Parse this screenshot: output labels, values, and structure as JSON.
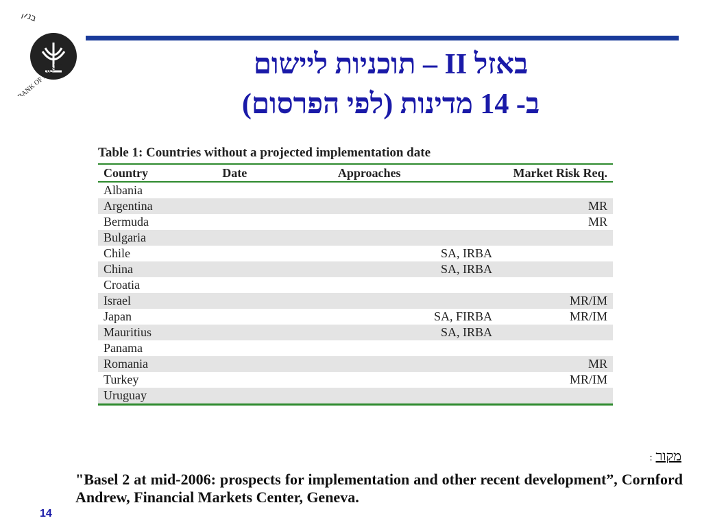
{
  "logo": {
    "hebrew": "בנק ישראל",
    "english": "BANK OF ISRAEL"
  },
  "header": {
    "title_line1": "באזל II – תוכניות ליישום",
    "title_line2": "ב- 14 מדינות (לפי הפרסום)"
  },
  "table": {
    "caption": "Table 1: Countries without a projected implementation date",
    "columns": [
      "Country",
      "Date",
      "Approaches",
      "Market Risk Req."
    ],
    "rows": [
      [
        "Albania",
        null,
        null,
        null
      ],
      [
        "Argentina",
        null,
        null,
        "MR"
      ],
      [
        "Bermuda",
        null,
        null,
        "MR"
      ],
      [
        "Bulgaria",
        null,
        null,
        null
      ],
      [
        "Chile",
        null,
        "SA, IRBA",
        null
      ],
      [
        "China",
        null,
        "SA, IRBA",
        null
      ],
      [
        "Croatia",
        null,
        null,
        null
      ],
      [
        "Israel",
        null,
        null,
        "MR/IM"
      ],
      [
        "Japan",
        null,
        "SA, FIRBA",
        "MR/IM"
      ],
      [
        "Mauritius",
        null,
        "SA, IRBA",
        null
      ],
      [
        "Panama",
        null,
        null,
        null
      ],
      [
        "Romania",
        null,
        null,
        "MR"
      ],
      [
        "Turkey",
        null,
        null,
        "MR/IM"
      ],
      [
        "Uruguay",
        null,
        null,
        null
      ]
    ]
  },
  "source": {
    "label": "מקור",
    "separator": ":",
    "citation": "\"Basel 2 at mid-2006: prospects for implementation and other recent development”, Cornford Andrew, Financial Markets Center, Geneva."
  },
  "page_number": "14"
}
